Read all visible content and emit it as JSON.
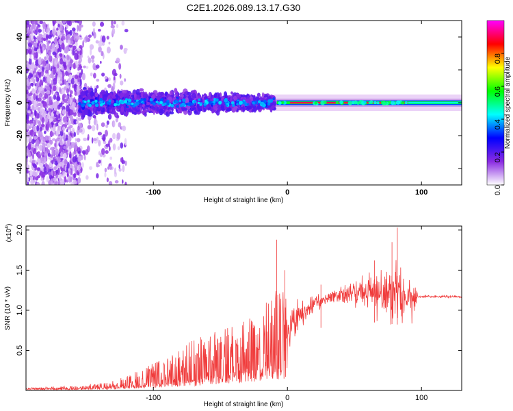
{
  "title": "C2E1.2026.089.13.17.G30",
  "chart_data": [
    {
      "type": "heatmap",
      "name": "spectrogram",
      "xlabel": "Height of straight line (km)",
      "ylabel": "Frequency (Hz)",
      "xlim": [
        -195,
        130
      ],
      "ylim": [
        -50,
        50
      ],
      "xticks": [
        -100,
        0,
        100
      ],
      "yticks": [
        -40,
        -20,
        0,
        20,
        40
      ],
      "colorbar": {
        "label": "Normalized spectral amplitude",
        "range": [
          0.0,
          1.0
        ],
        "ticks": [
          0.0,
          0.2,
          0.4,
          0.6,
          0.8
        ],
        "colors": [
          "#ffffff",
          "#8a2be2",
          "#0000ff",
          "#00ffff",
          "#00ff00",
          "#ffff00",
          "#ff0000",
          "#ff00ff"
        ]
      },
      "features": {
        "noise_region_x": [
          -195,
          -120
        ],
        "signal_band_x": [
          -155,
          -10
        ],
        "signal_band_halfwidth_hz": [
          8,
          4
        ],
        "strong_line_x": [
          -8,
          130
        ],
        "strong_line_freq_hz": 0
      }
    },
    {
      "type": "line",
      "name": "snr",
      "xlabel": "Height of straight line (km)",
      "ylabel": "SNR (10 * v/v)",
      "scale_label": "(x10",
      "scale_exponent": "4",
      "scale_close": ")",
      "xlim": [
        -195,
        130
      ],
      "ylim": [
        0,
        2.05
      ],
      "xticks": [
        -100,
        0,
        100
      ],
      "yticks": [
        0.5,
        1.0,
        1.5,
        2.0
      ],
      "ytick_labels": [
        "0.5",
        "1.0",
        "1.5",
        "2.0"
      ],
      "color": "#f03c3c",
      "trend": {
        "x": [
          -195,
          -160,
          -130,
          -110,
          -90,
          -70,
          -50,
          -30,
          -15,
          -5,
          0,
          10,
          20,
          30,
          40,
          50,
          60,
          70,
          80,
          90,
          95,
          97,
          110,
          130
        ],
        "y": [
          0.03,
          0.04,
          0.07,
          0.12,
          0.2,
          0.28,
          0.37,
          0.47,
          0.57,
          0.65,
          0.75,
          0.95,
          1.08,
          1.15,
          1.2,
          1.22,
          1.22,
          1.2,
          1.18,
          1.15,
          1.15,
          1.17,
          1.17,
          1.17
        ]
      },
      "noise_amplitude": {
        "x": [
          -195,
          -160,
          -130,
          -110,
          -90,
          -70,
          -50,
          -30,
          -15,
          -5,
          0,
          10,
          30,
          45,
          55,
          70,
          80,
          90,
          96,
          97,
          130
        ],
        "y": [
          0.01,
          0.02,
          0.05,
          0.12,
          0.2,
          0.3,
          0.35,
          0.4,
          0.5,
          0.6,
          0.45,
          0.25,
          0.12,
          0.18,
          0.3,
          0.45,
          0.55,
          0.45,
          0.3,
          0.02,
          0.02
        ]
      },
      "spikes": [
        {
          "x": -8,
          "y": 1.88
        },
        {
          "x": -2,
          "y": 1.5
        },
        {
          "x": 78,
          "y": 1.85
        },
        {
          "x": 82,
          "y": 2.03
        },
        {
          "x": 65,
          "y": 1.62
        },
        {
          "x": 25,
          "y": 1.32
        }
      ]
    }
  ]
}
